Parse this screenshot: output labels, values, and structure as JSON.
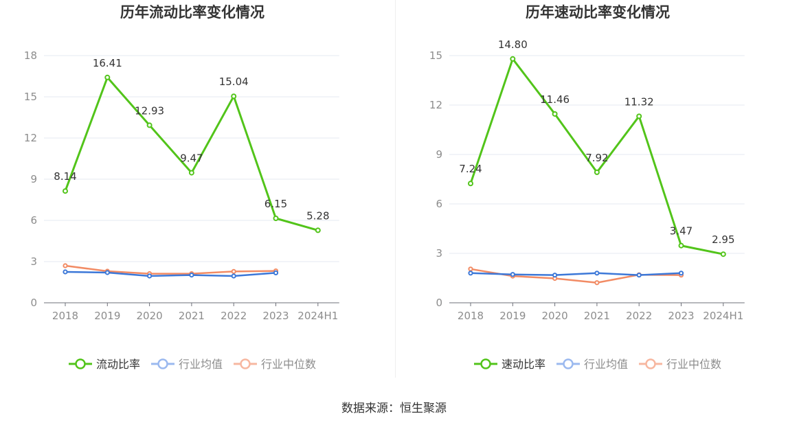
{
  "chart_data": [
    {
      "type": "line",
      "title": "历年流动比率变化情况",
      "categories": [
        "2018",
        "2019",
        "2020",
        "2021",
        "2022",
        "2023",
        "2024H1"
      ],
      "ylim": [
        0,
        18
      ],
      "yticks": [
        0,
        3,
        6,
        9,
        12,
        15,
        18
      ],
      "grid": true,
      "legend_position": "bottom",
      "series": [
        {
          "name": "流动比率",
          "values": [
            8.14,
            16.41,
            12.93,
            9.47,
            15.04,
            6.15,
            5.28
          ],
          "color": "#52c41a",
          "labels": [
            "8.14",
            "16.41",
            "12.93",
            "9.47",
            "15.04",
            "6.15",
            "5.28"
          ]
        },
        {
          "name": "行业均值",
          "values": [
            2.25,
            2.2,
            1.95,
            2.02,
            1.95,
            2.18,
            null
          ],
          "color": "#3c78d8"
        },
        {
          "name": "行业中位数",
          "values": [
            2.7,
            2.3,
            2.12,
            2.12,
            2.28,
            2.32,
            null
          ],
          "color": "#f28b64"
        }
      ]
    },
    {
      "type": "line",
      "title": "历年速动比率变化情况",
      "categories": [
        "2018",
        "2019",
        "2020",
        "2021",
        "2022",
        "2023",
        "2024H1"
      ],
      "ylim": [
        0,
        15
      ],
      "yticks": [
        0,
        3,
        6,
        9,
        12,
        15
      ],
      "grid": true,
      "legend_position": "bottom",
      "series": [
        {
          "name": "速动比率",
          "values": [
            7.24,
            14.8,
            11.46,
            7.92,
            11.32,
            3.47,
            2.95
          ],
          "color": "#52c41a",
          "labels": [
            "7.24",
            "14.80",
            "11.46",
            "7.92",
            "11.32",
            "3.47",
            "2.95"
          ]
        },
        {
          "name": "行业均值",
          "values": [
            1.8,
            1.72,
            1.68,
            1.8,
            1.68,
            1.8,
            null
          ],
          "color": "#3c78d8"
        },
        {
          "name": "行业中位数",
          "values": [
            2.05,
            1.62,
            1.48,
            1.22,
            1.7,
            1.68,
            null
          ],
          "color": "#f28b64"
        }
      ]
    }
  ],
  "legend_colors": {
    "primary": "#52c41a",
    "avg_muted": "#9bb9ef",
    "median_muted": "#f7b7a0"
  },
  "source_text": "数据来源：恒生聚源"
}
